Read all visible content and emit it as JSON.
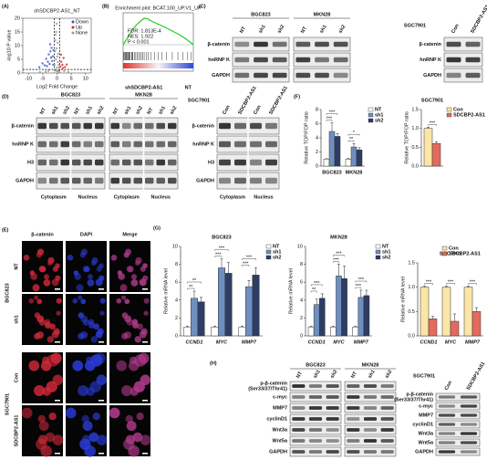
{
  "panel_labels": {
    "A": "(A)",
    "B": "(B)",
    "C": "(C)",
    "D": "(D)",
    "E": "(E)",
    "F": "(F)",
    "G": "(G)",
    "H": "(H)"
  },
  "chart_data": [
    {
      "type": "scatter",
      "title": "shSDCBP2-AS1_NT",
      "xlabel": "Log2 Fold Change",
      "ylabel": "-log10 P value",
      "xlim": [
        -12,
        12
      ],
      "xticks": [
        -10,
        -5,
        0,
        5,
        10
      ],
      "ylim": [
        0,
        20
      ],
      "yticks": [
        0,
        5,
        10,
        15,
        20
      ],
      "thresholds": {
        "x": [
          -1,
          1
        ],
        "y": 1.3
      },
      "legend": "upper right",
      "series": [
        {
          "name": "Down",
          "color": "#3355cc",
          "x": [
            -6.2,
            -5.1,
            -4.3,
            -3.8,
            -3.2,
            -2.9,
            -2.6,
            -2.3,
            -2.1,
            -1.9,
            -1.7,
            -1.5,
            -1.3,
            -1.2,
            -3.5,
            -2.4
          ],
          "values": [
            2.1,
            3.5,
            2.8,
            5.2,
            4.1,
            6.8,
            3.3,
            7.9,
            5.6,
            9.2,
            4.4,
            6.1,
            3.0,
            8.3,
            2.5,
            10.5
          ]
        },
        {
          "name": "Up",
          "color": "#d62728",
          "x": [
            1.2,
            1.5,
            1.9,
            2.3,
            2.8,
            3.4,
            1.4,
            2.1
          ],
          "values": [
            2.4,
            4.1,
            3.0,
            5.5,
            2.2,
            3.1,
            6.7,
            1.8
          ]
        },
        {
          "name": "None",
          "color": "#999999",
          "x": [
            -0.9,
            -0.7,
            -0.6,
            -0.4,
            -0.3,
            -0.2,
            -0.1,
            0,
            0.1,
            0.2,
            0.3,
            0.4,
            0.5,
            0.6,
            0.8,
            -0.5,
            -0.8,
            0.7,
            -0.3,
            0.2,
            -4,
            -3,
            2.5,
            -6,
            4
          ],
          "values": [
            3,
            8,
            12,
            5,
            15,
            9,
            18,
            2,
            6,
            11,
            4,
            7,
            1,
            3,
            2,
            14,
            1,
            0.5,
            0.8,
            0.6,
            0.5,
            0.8,
            0.7,
            0.3,
            0.4
          ]
        }
      ]
    },
    {
      "type": "line",
      "title": "Enrichment plot: BCAT.100_UP.V1_UP",
      "color": "#22cc22",
      "xlim": [
        0,
        100
      ],
      "ylim": [
        -0.1,
        0.7
      ],
      "x": [
        0,
        5,
        10,
        15,
        20,
        25,
        30,
        35,
        40,
        50,
        60,
        70,
        80,
        90,
        100
      ],
      "values": [
        0,
        0.12,
        0.25,
        0.36,
        0.45,
        0.52,
        0.58,
        0.57,
        0.52,
        0.45,
        0.38,
        0.3,
        0.22,
        0.12,
        0
      ],
      "hits": [
        1,
        2,
        3,
        4,
        5,
        6,
        7,
        8,
        9,
        10,
        12,
        13,
        14,
        16,
        18,
        20,
        22,
        24,
        26,
        28,
        30,
        33,
        36,
        40,
        45,
        50,
        55,
        62,
        70,
        78,
        85,
        92,
        97
      ],
      "annotations": [
        "FDR: 1.813E-4",
        "NES: 1.922",
        "P < 0.001"
      ],
      "left_label": "shSDCBP2-AS1",
      "right_label": "NT"
    },
    {
      "type": "bar",
      "ylabel": "Relative TOP/FOP ratio",
      "categories": [
        "BGC823",
        "MKN28"
      ],
      "ylim": [
        0,
        8
      ],
      "yticks": [
        0,
        2,
        4,
        6,
        8
      ],
      "legend": "right",
      "italic_categories": false,
      "series": [
        {
          "name": "NT",
          "color": "#ffffff",
          "values": [
            1,
            1
          ],
          "errors": [
            0.05,
            0.1
          ]
        },
        {
          "name": "sh1",
          "color": "#6f8fc0",
          "values": [
            4.9,
            2.7
          ],
          "errors": [
            1.2,
            0.5
          ],
          "significance": [
            "***",
            "**"
          ]
        },
        {
          "name": "sh2",
          "color": "#2d3d63",
          "values": [
            4.2,
            2.3
          ],
          "errors": [
            0.4,
            0.3
          ],
          "significance": [
            "***",
            "*"
          ]
        }
      ]
    },
    {
      "type": "bar",
      "title": "SGC7901",
      "ylabel": "Relative TOP/FOP ratio",
      "categories": [
        null
      ],
      "ylim": [
        0,
        1.5
      ],
      "yticks": [
        {
          "value": 0,
          "label": "0.0"
        },
        0.5,
        {
          "value": 1,
          "label": "1.0"
        },
        1.5
      ],
      "legend": "right",
      "italic_categories": false,
      "series": [
        {
          "name": "Con",
          "color": "#fbe6a7",
          "values": [
            1.0
          ],
          "errors": [
            0.03
          ]
        },
        {
          "name": "SDCBP2-AS1",
          "color": "#e46a5e",
          "values": [
            0.6
          ],
          "errors": [
            0.05
          ],
          "significance": [
            "***"
          ]
        }
      ]
    },
    {
      "type": "bar",
      "title": "BGC823",
      "ylabel": "Relative mRNA level",
      "categories": [
        "CCND1",
        "MYC",
        "MMP7"
      ],
      "ylim": [
        0,
        10
      ],
      "yticks": [
        0,
        2,
        4,
        6,
        8,
        10
      ],
      "legend": "right",
      "italic_categories": true,
      "series": [
        {
          "name": "NT",
          "color": "#ffffff",
          "values": [
            1,
            1,
            1
          ],
          "errors": [
            0.1,
            0.1,
            0.1
          ]
        },
        {
          "name": "sh1",
          "color": "#6f8fc0",
          "values": [
            4.2,
            7.6,
            5.5
          ],
          "errors": [
            0.8,
            1.0,
            0.7
          ],
          "significance": [
            "**",
            "***",
            "***"
          ]
        },
        {
          "name": "sh2",
          "color": "#2d3d63",
          "values": [
            3.8,
            7.0,
            6.8
          ],
          "errors": [
            0.5,
            1.2,
            0.8
          ],
          "significance": [
            "**",
            "***",
            "***"
          ]
        }
      ]
    },
    {
      "type": "bar",
      "title": "MKN28",
      "ylabel": "Relative mRNA level",
      "categories": [
        "CCND1",
        "MYC",
        "MMP7"
      ],
      "ylim": [
        0,
        10
      ],
      "yticks": [
        0,
        2,
        4,
        6,
        8,
        10
      ],
      "legend": "right",
      "italic_categories": true,
      "series": [
        {
          "name": "NT",
          "color": "#ffffff",
          "values": [
            1,
            1,
            1
          ],
          "errors": [
            0.1,
            0.1,
            0.1
          ]
        },
        {
          "name": "sh1",
          "color": "#6f8fc0",
          "values": [
            3.5,
            6.7,
            4.3
          ],
          "errors": [
            0.6,
            1.3,
            0.8
          ],
          "significance": [
            "**",
            "***",
            "***"
          ]
        },
        {
          "name": "sh2",
          "color": "#2d3d63",
          "values": [
            4.2,
            6.4,
            4.5
          ],
          "errors": [
            0.5,
            1.4,
            0.6
          ],
          "significance": [
            "***",
            "***",
            "***"
          ]
        }
      ]
    },
    {
      "type": "bar",
      "title": "SGC7901",
      "ylabel": "Relative mRNA level",
      "categories": [
        "CCND1",
        "MYC",
        "MMP7"
      ],
      "ylim": [
        0,
        1.5
      ],
      "yticks": [
        {
          "value": 0,
          "label": "0.0"
        },
        0.5,
        {
          "value": 1,
          "label": "1.0"
        },
        1.5
      ],
      "legend": "upper right",
      "italic_categories": true,
      "series": [
        {
          "name": "Con",
          "color": "#fbe6a7",
          "values": [
            1,
            1,
            1
          ],
          "errors": [
            0.02,
            0.02,
            0.02
          ]
        },
        {
          "name": "SDCBP2-AS1",
          "color": "#e46a5e",
          "values": [
            0.35,
            0.3,
            0.5
          ],
          "errors": [
            0.05,
            0.15,
            0.08
          ],
          "significance": [
            "***",
            "***",
            "***"
          ]
        }
      ]
    }
  ],
  "blots": {
    "C_left": {
      "groups": [
        {
          "name": "BGC823",
          "lanes": [
            "NT",
            "sh1",
            "sh2"
          ]
        },
        {
          "name": "MKN28",
          "lanes": [
            "NT",
            "sh1",
            "sh2"
          ]
        }
      ],
      "rows": [
        "β-catenin",
        "hnRNP K",
        "GAPDH"
      ]
    },
    "C_right": {
      "groups": [
        {
          "name": "SGC7901",
          "lanes": [
            "Con",
            "SDCBP2-AS1"
          ]
        }
      ],
      "rows": [
        "β-catenin",
        "hnRNP K",
        "GAPDH"
      ]
    },
    "D_left": {
      "groups": [
        {
          "name": "BGC823",
          "lanes": [
            "NT",
            "sh1",
            "sh2",
            "NT",
            "sh1",
            "sh2"
          ],
          "fractions": [
            "Cytoplasm",
            "Nucleus"
          ]
        },
        {
          "name": "MKN28",
          "lanes": [
            "NT",
            "sh1",
            "sh2",
            "NT",
            "sh1",
            "sh2"
          ],
          "fractions": [
            "Cytoplasm",
            "Nucleus"
          ]
        }
      ],
      "rows": [
        "β-catenin",
        "hnRNP K",
        "H3",
        "GAPDH"
      ]
    },
    "D_right": {
      "groups": [
        {
          "name": "SGC7901",
          "lanes": [
            "Con",
            "SDCBP2-AS1",
            "Con",
            "SDCBP2-AS1"
          ],
          "fractions": [
            "Cytoplasm",
            "Nucleus"
          ]
        }
      ],
      "rows": [
        "β-catenin",
        "hnRNP K",
        "H3",
        "GAPDH"
      ]
    },
    "H_left": {
      "groups": [
        {
          "name": "BGC823",
          "lanes": [
            "NT",
            "sh1",
            "sh2"
          ]
        },
        {
          "name": "MKN28",
          "lanes": [
            "NT",
            "sh1",
            "sh2"
          ]
        }
      ],
      "rows": [
        "p-β-catenin",
        "c-myc",
        "MMP7",
        "cyclinD1",
        "Wnt3a",
        "Wnt5a",
        "GAPDH"
      ],
      "row_note": "(Ser33/37/Thr41)"
    },
    "H_right": {
      "groups": [
        {
          "name": "SGC7901",
          "lanes": [
            "Con",
            "SDCBP2-AS1"
          ]
        }
      ],
      "rows": [
        "p-β-catenin",
        "c-myc",
        "MMP7",
        "cyclinD1",
        "Wnt3a",
        "Wnt5a",
        "GAPDH"
      ],
      "row_note": "(Ser33/37/Thr41)"
    }
  },
  "if_panel": {
    "columns": [
      "β-catenin",
      "DAPI",
      "Merge"
    ],
    "groups": [
      {
        "name": "BGC823",
        "rows": [
          "NT",
          "sh1"
        ]
      },
      {
        "name": "SGC7901",
        "rows": [
          "Con",
          "SDCBP2-AS1"
        ]
      }
    ]
  }
}
